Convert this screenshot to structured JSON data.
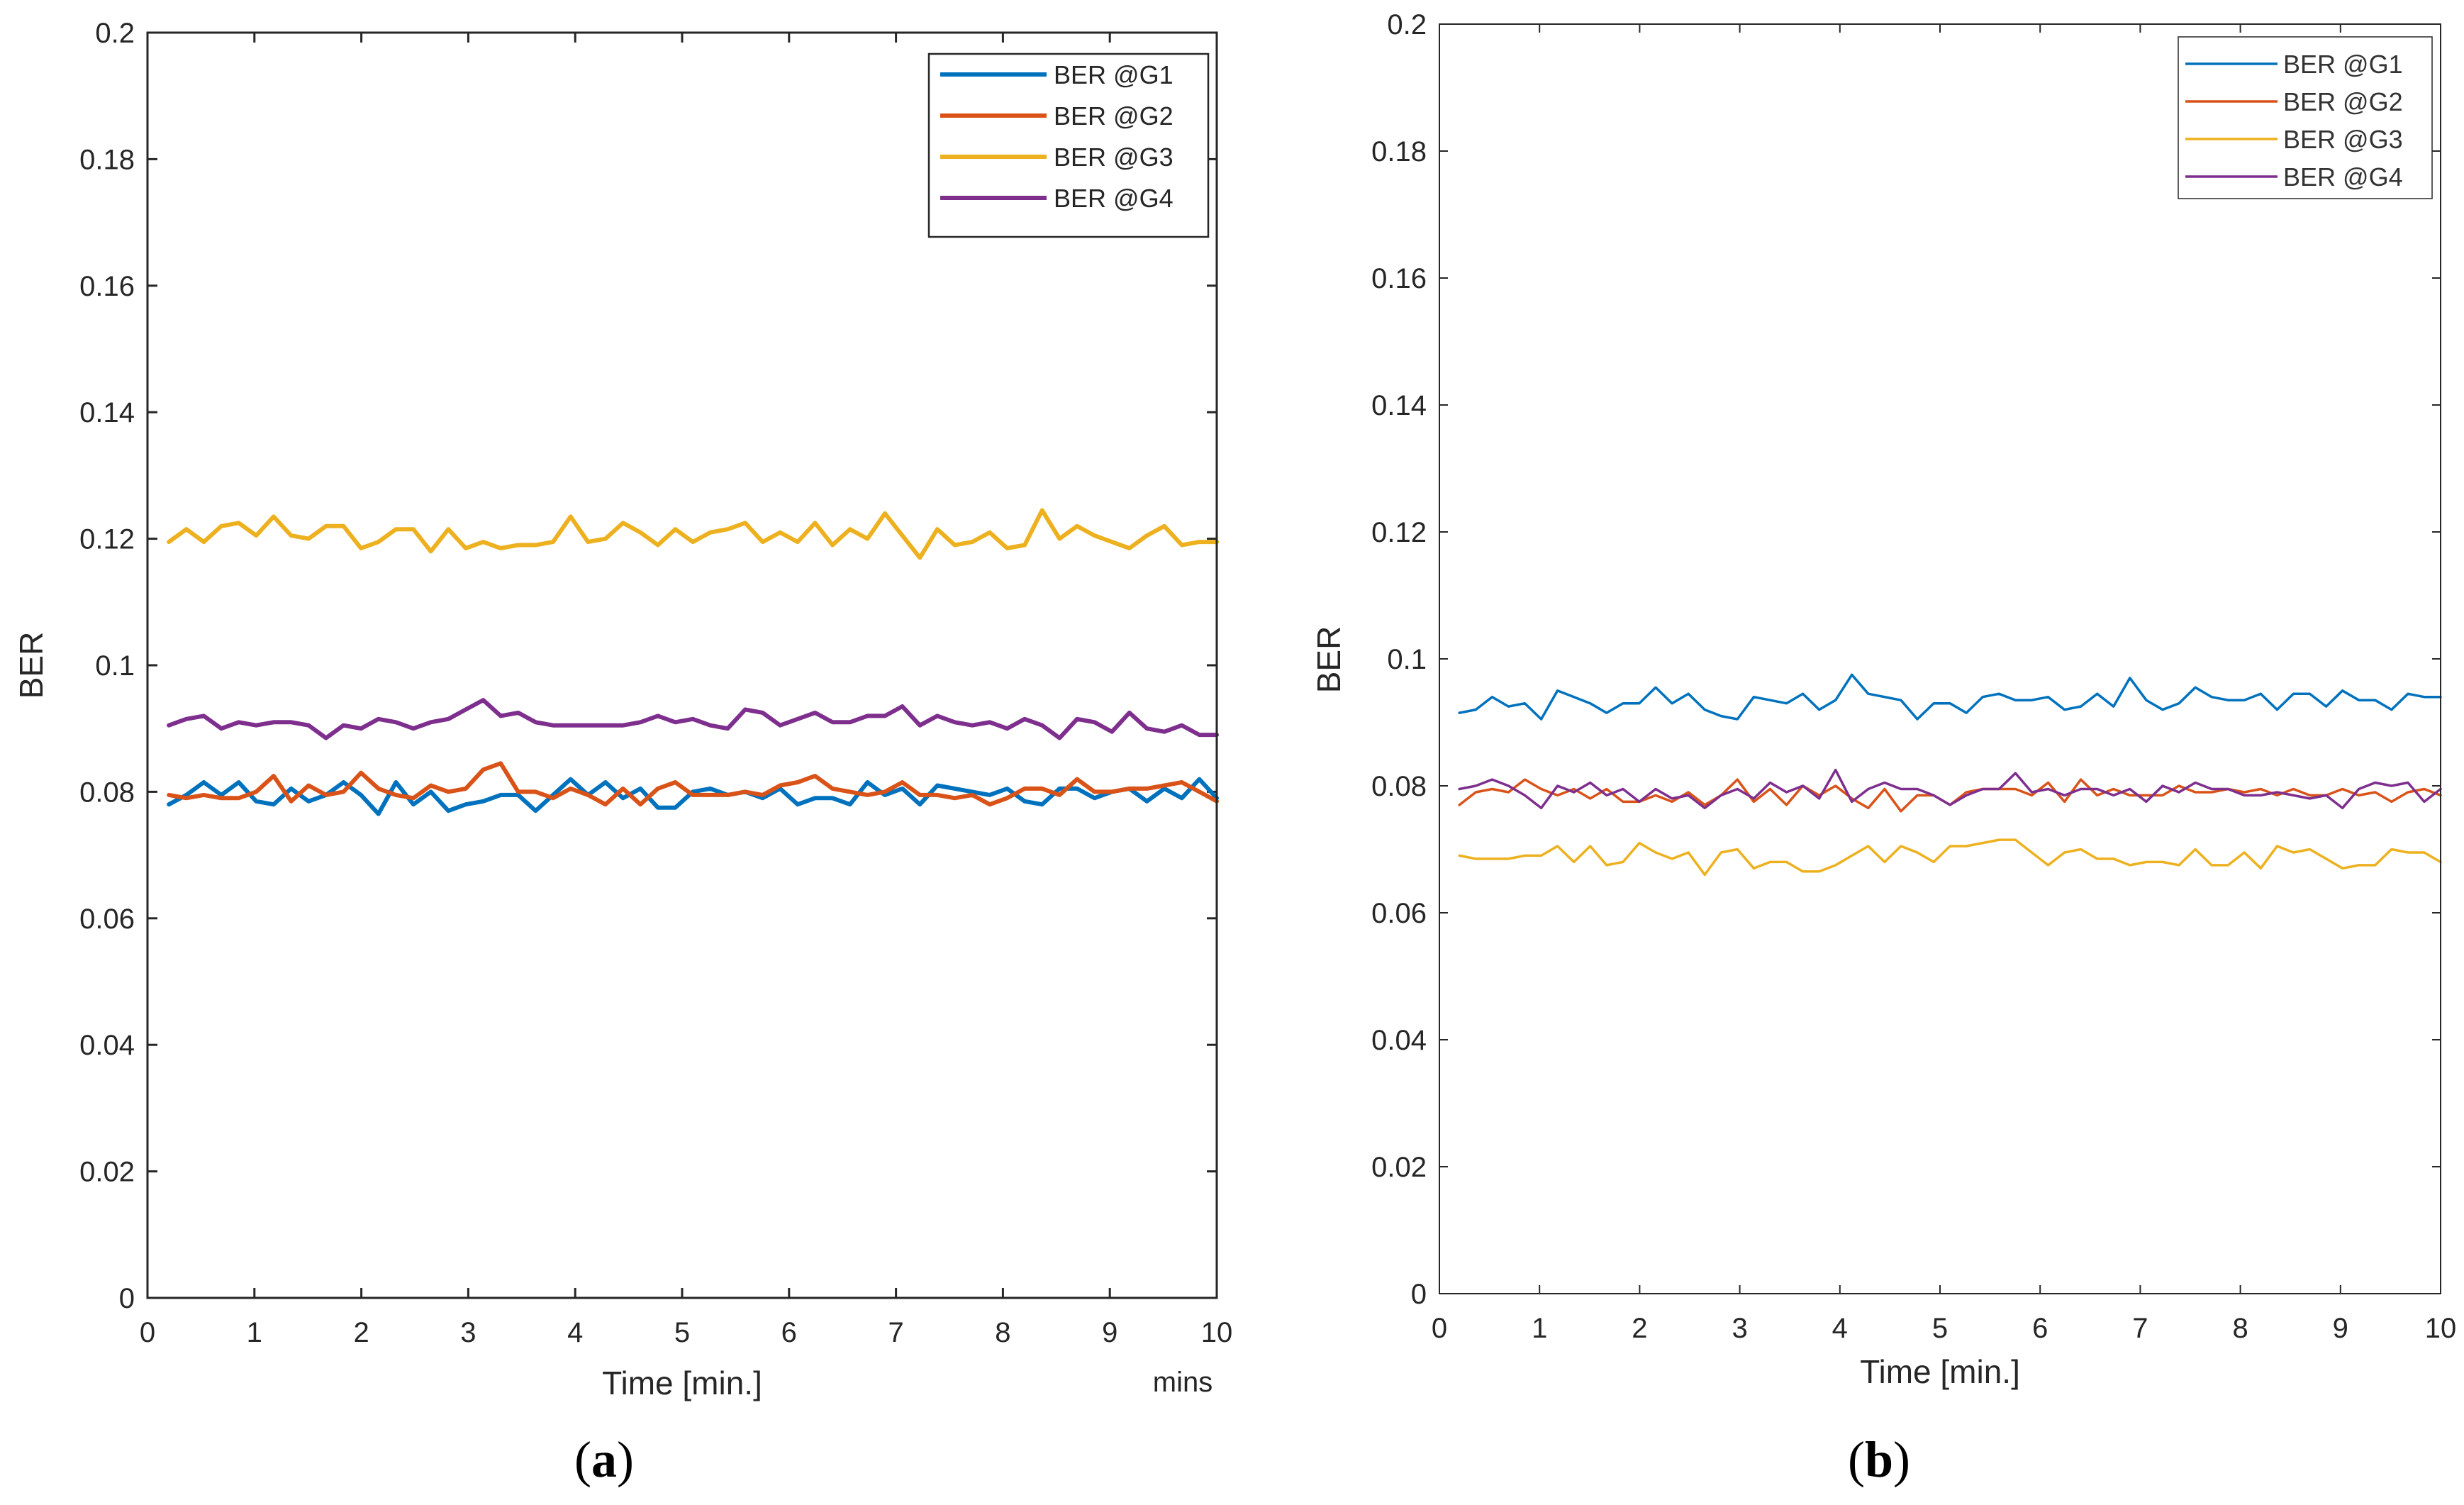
{
  "chart_data": [
    {
      "id": "a",
      "type": "line",
      "caption_open": "(",
      "caption_letter": "a",
      "caption_close": ")",
      "xlabel": "Time [min.]",
      "ylabel": "BER",
      "extra_label": "mins",
      "xlim": [
        0,
        10
      ],
      "ylim": [
        0,
        0.2
      ],
      "xticks": [
        "0",
        "1",
        "2",
        "3",
        "4",
        "5",
        "6",
        "7",
        "8",
        "9",
        "10"
      ],
      "yticks": [
        "0",
        "0.02",
        "0.04",
        "0.06",
        "0.08",
        "0.1",
        "0.12",
        "0.14",
        "0.16",
        "0.18",
        "0.2"
      ],
      "legend_position": "top-right",
      "series": [
        {
          "name": "BER @G1",
          "color": "#0072BD",
          "values": [
            0.078,
            0.0795,
            0.0815,
            0.0795,
            0.0815,
            0.0785,
            0.078,
            0.0805,
            0.0785,
            0.0795,
            0.0815,
            0.0795,
            0.0765,
            0.0815,
            0.078,
            0.08,
            0.077,
            0.078,
            0.0785,
            0.0795,
            0.0795,
            0.077,
            0.0795,
            0.082,
            0.0795,
            0.0815,
            0.079,
            0.0805,
            0.0775,
            0.0775,
            0.08,
            0.0805,
            0.0795,
            0.08,
            0.079,
            0.0805,
            0.078,
            0.079,
            0.079,
            0.078,
            0.0815,
            0.0795,
            0.0805,
            0.078,
            0.081,
            0.0805,
            0.08,
            0.0795,
            0.0805,
            0.0785,
            0.078,
            0.0805,
            0.0805,
            0.079,
            0.08,
            0.0805,
            0.0785,
            0.0805,
            0.079,
            0.082,
            0.079
          ]
        },
        {
          "name": "BER @G2",
          "color": "#D95319",
          "values": [
            0.0795,
            0.079,
            0.0795,
            0.079,
            0.079,
            0.08,
            0.0825,
            0.0785,
            0.081,
            0.0795,
            0.08,
            0.083,
            0.0805,
            0.0795,
            0.079,
            0.081,
            0.08,
            0.0805,
            0.0835,
            0.0845,
            0.08,
            0.08,
            0.079,
            0.0805,
            0.0795,
            0.078,
            0.0805,
            0.078,
            0.0805,
            0.0815,
            0.0795,
            0.0795,
            0.0795,
            0.08,
            0.0795,
            0.081,
            0.0815,
            0.0825,
            0.0805,
            0.08,
            0.0795,
            0.08,
            0.0815,
            0.0795,
            0.0795,
            0.079,
            0.0795,
            0.078,
            0.079,
            0.0805,
            0.0805,
            0.0795,
            0.082,
            0.08,
            0.08,
            0.0805,
            0.0805,
            0.081,
            0.0815,
            0.08,
            0.0785
          ]
        },
        {
          "name": "BER @G3",
          "color": "#EDB120",
          "values": [
            0.1195,
            0.1215,
            0.1195,
            0.122,
            0.1225,
            0.1205,
            0.1235,
            0.1205,
            0.12,
            0.122,
            0.122,
            0.1185,
            0.1195,
            0.1215,
            0.1215,
            0.118,
            0.1215,
            0.1185,
            0.1195,
            0.1185,
            0.119,
            0.119,
            0.1195,
            0.1235,
            0.1195,
            0.12,
            0.1225,
            0.121,
            0.119,
            0.1215,
            0.1195,
            0.121,
            0.1215,
            0.1225,
            0.1195,
            0.121,
            0.1195,
            0.1225,
            0.119,
            0.1215,
            0.12,
            0.124,
            0.1205,
            0.117,
            0.1215,
            0.119,
            0.1195,
            0.121,
            0.1185,
            0.119,
            0.1245,
            0.12,
            0.122,
            0.1205,
            0.1195,
            0.1185,
            0.1205,
            0.122,
            0.119,
            0.1195,
            0.1195
          ]
        },
        {
          "name": "BER @G4",
          "color": "#7E2F8E",
          "values": [
            0.0905,
            0.0915,
            0.092,
            0.09,
            0.091,
            0.0905,
            0.091,
            0.091,
            0.0905,
            0.0885,
            0.0905,
            0.09,
            0.0915,
            0.091,
            0.09,
            0.091,
            0.0915,
            0.093,
            0.0945,
            0.092,
            0.0925,
            0.091,
            0.0905,
            0.0905,
            0.0905,
            0.0905,
            0.0905,
            0.091,
            0.092,
            0.091,
            0.0915,
            0.0905,
            0.09,
            0.093,
            0.0925,
            0.0905,
            0.0915,
            0.0925,
            0.091,
            0.091,
            0.092,
            0.092,
            0.0935,
            0.0905,
            0.092,
            0.091,
            0.0905,
            0.091,
            0.09,
            0.0915,
            0.0905,
            0.0885,
            0.0915,
            0.091,
            0.0895,
            0.0925,
            0.09,
            0.0895,
            0.0905,
            0.089,
            0.089
          ]
        }
      ]
    },
    {
      "id": "b",
      "type": "line",
      "caption_open": "(",
      "caption_letter": "b",
      "caption_close": ")",
      "xlabel": "Time [min.]",
      "ylabel": "BER",
      "xlim": [
        0,
        10
      ],
      "ylim": [
        0,
        0.2
      ],
      "xticks": [
        "0",
        "1",
        "2",
        "3",
        "4",
        "5",
        "6",
        "7",
        "8",
        "9",
        "10"
      ],
      "yticks": [
        "0",
        "0.02",
        "0.04",
        "0.06",
        "0.08",
        "0.1",
        "0.12",
        "0.14",
        "0.16",
        "0.18",
        "0.2"
      ],
      "legend_position": "top-right",
      "series": [
        {
          "name": "BER @G1",
          "color": "#0072BD",
          "values": [
            0.0915,
            0.092,
            0.094,
            0.0925,
            0.093,
            0.0905,
            0.095,
            0.094,
            0.093,
            0.0915,
            0.093,
            0.093,
            0.0955,
            0.093,
            0.0945,
            0.092,
            0.091,
            0.0905,
            0.094,
            0.0935,
            0.093,
            0.0945,
            0.092,
            0.0935,
            0.0975,
            0.0945,
            0.094,
            0.0935,
            0.0905,
            0.093,
            0.093,
            0.0915,
            0.094,
            0.0945,
            0.0935,
            0.0935,
            0.094,
            0.092,
            0.0925,
            0.0945,
            0.0925,
            0.097,
            0.0935,
            0.092,
            0.093,
            0.0955,
            0.094,
            0.0935,
            0.0935,
            0.0945,
            0.092,
            0.0945,
            0.0945,
            0.0925,
            0.095,
            0.0935,
            0.0935,
            0.092,
            0.0945,
            0.094,
            0.094
          ]
        },
        {
          "name": "BER @G2",
          "color": "#D95319",
          "values": [
            0.077,
            0.079,
            0.0795,
            0.079,
            0.081,
            0.0795,
            0.0785,
            0.0795,
            0.078,
            0.0795,
            0.0775,
            0.0775,
            0.0785,
            0.0775,
            0.079,
            0.077,
            0.0785,
            0.081,
            0.0775,
            0.0795,
            0.077,
            0.08,
            0.0785,
            0.08,
            0.078,
            0.0765,
            0.0795,
            0.076,
            0.0785,
            0.0785,
            0.077,
            0.079,
            0.0795,
            0.0795,
            0.0795,
            0.0785,
            0.0805,
            0.0775,
            0.081,
            0.0785,
            0.0795,
            0.0785,
            0.0785,
            0.0785,
            0.08,
            0.079,
            0.079,
            0.0795,
            0.079,
            0.0795,
            0.0785,
            0.0795,
            0.0785,
            0.0785,
            0.0795,
            0.0785,
            0.079,
            0.0775,
            0.079,
            0.0795,
            0.0785
          ]
        },
        {
          "name": "BER @G3",
          "color": "#EDB120",
          "values": [
            0.069,
            0.0685,
            0.0685,
            0.0685,
            0.069,
            0.069,
            0.0705,
            0.068,
            0.0705,
            0.0675,
            0.068,
            0.071,
            0.0695,
            0.0685,
            0.0695,
            0.066,
            0.0695,
            0.07,
            0.067,
            0.068,
            0.068,
            0.0665,
            0.0665,
            0.0675,
            0.069,
            0.0705,
            0.068,
            0.0705,
            0.0695,
            0.068,
            0.0705,
            0.0705,
            0.071,
            0.0715,
            0.0715,
            0.0695,
            0.0675,
            0.0695,
            0.07,
            0.0685,
            0.0685,
            0.0675,
            0.068,
            0.068,
            0.0675,
            0.07,
            0.0675,
            0.0675,
            0.0695,
            0.067,
            0.0705,
            0.0695,
            0.07,
            0.0685,
            0.067,
            0.0675,
            0.0675,
            0.07,
            0.0695,
            0.0695,
            0.068
          ]
        },
        {
          "name": "BER @G4",
          "color": "#7E2F8E",
          "values": [
            0.0795,
            0.08,
            0.081,
            0.08,
            0.0785,
            0.0765,
            0.08,
            0.079,
            0.0805,
            0.0785,
            0.0795,
            0.0775,
            0.0795,
            0.078,
            0.0785,
            0.0765,
            0.0785,
            0.0795,
            0.078,
            0.0805,
            0.079,
            0.08,
            0.078,
            0.0825,
            0.0775,
            0.0795,
            0.0805,
            0.0795,
            0.0795,
            0.0785,
            0.077,
            0.0785,
            0.0795,
            0.0795,
            0.082,
            0.079,
            0.0795,
            0.0785,
            0.0795,
            0.0795,
            0.0785,
            0.0795,
            0.0775,
            0.08,
            0.079,
            0.0805,
            0.0795,
            0.0795,
            0.0785,
            0.0785,
            0.079,
            0.0785,
            0.078,
            0.0785,
            0.0765,
            0.0795,
            0.0805,
            0.08,
            0.0805,
            0.0775,
            0.0795
          ]
        }
      ]
    }
  ]
}
